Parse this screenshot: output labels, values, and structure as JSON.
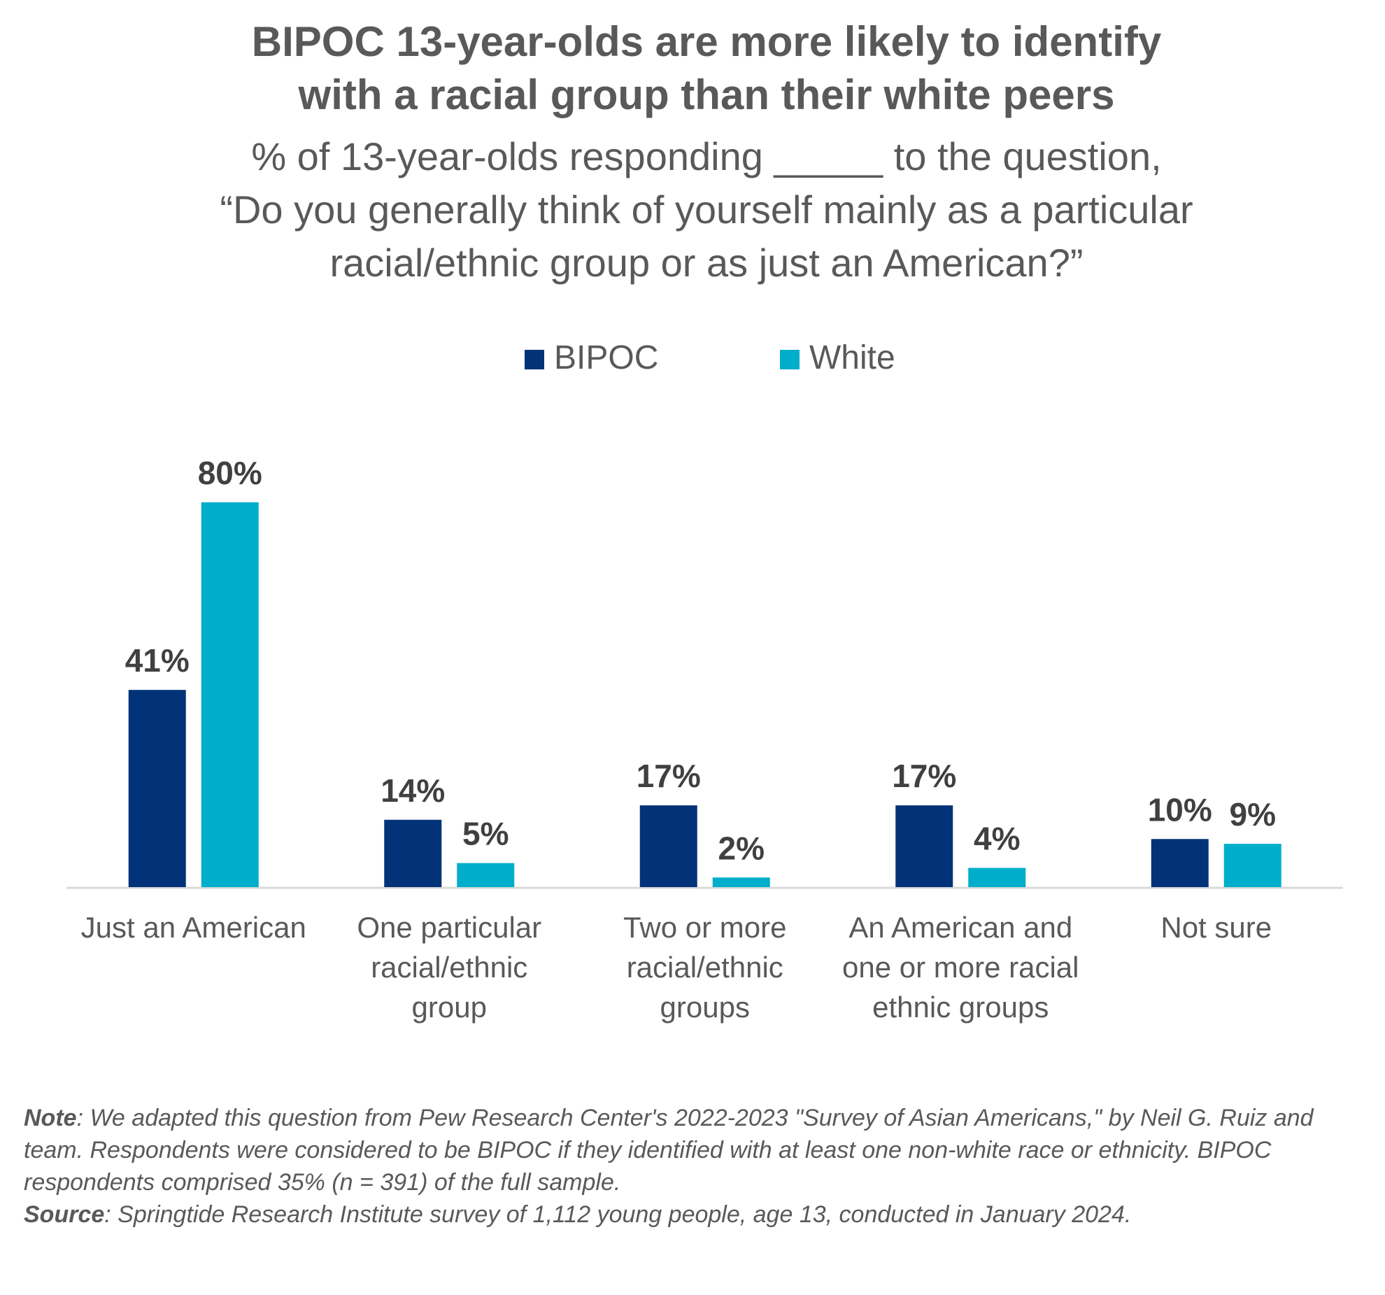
{
  "chart_data": {
    "type": "bar",
    "title_lines": [
      "BIPOC 13-year-olds are more likely to identify",
      "with a racial group than their white peers"
    ],
    "subtitle_lines": [
      "% of 13-year-olds responding _____ to the question,",
      "“Do you generally think of yourself mainly as a particular",
      "racial/ethnic group or as just an American?”"
    ],
    "categories": [
      [
        "Just an American"
      ],
      [
        "One particular",
        "racial/ethnic",
        "group"
      ],
      [
        "Two or more",
        "racial/ethnic",
        "groups"
      ],
      [
        "An American and",
        "one or more racial",
        "ethnic groups"
      ],
      [
        "Not sure"
      ]
    ],
    "series": [
      {
        "name": "BIPOC",
        "color": "#023378",
        "values": [
          41,
          14,
          17,
          17,
          10
        ],
        "labels": [
          "41%",
          "14%",
          "17%",
          "17%",
          "10%"
        ]
      },
      {
        "name": "White",
        "color": "#00AECB",
        "values": [
          80,
          5,
          2,
          4,
          9
        ],
        "labels": [
          "80%",
          "5%",
          "2%",
          "4%",
          "9%"
        ]
      }
    ],
    "ylim": [
      0,
      80
    ],
    "legend_position": "top-center",
    "grid": false,
    "value_unit": "%"
  },
  "footnote": {
    "note_label": "Note",
    "note_text": ": We adapted this question from Pew Research Center's 2022-2023 \"Survey of Asian Americans,\" by Neil G. Ruiz and team. Respondents were considered to be BIPOC if they identified with at least one non-white race or ethnicity. BIPOC respondents comprised 35% (n = 391) of the full sample.",
    "source_label": "Source",
    "source_text": ": Springtide Research Institute survey of 1,112 young people, age 13, conducted in January 2024."
  }
}
